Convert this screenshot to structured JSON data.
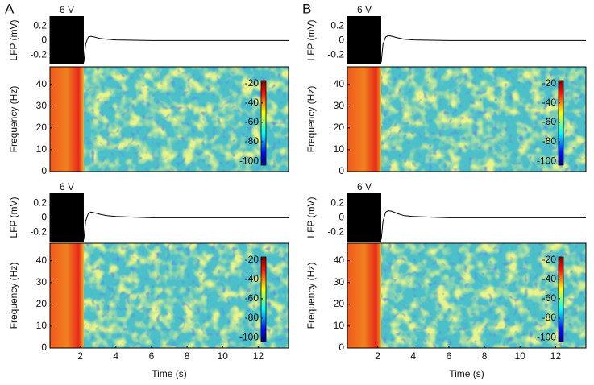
{
  "panel_labels": [
    "A",
    "B"
  ],
  "chart_data": [
    {
      "type": "line",
      "annotation": "6 V",
      "ylabel": "LFP (mV)",
      "xlim": [
        0.3,
        13.7
      ],
      "ylim": [
        -0.33,
        0.34
      ],
      "yticks": [
        0.2,
        0,
        -0.2
      ],
      "stimulus": [
        0.3,
        2.2
      ],
      "x": [
        2.2,
        2.3,
        2.45,
        2.6,
        2.8,
        3.1,
        3.5,
        4,
        5,
        6,
        8,
        10,
        12,
        13.7
      ],
      "y": [
        -0.3,
        -0.05,
        0.05,
        0.06,
        0.05,
        0.03,
        0.02,
        0.01,
        0.005,
        0,
        0,
        0,
        0,
        0
      ]
    },
    {
      "type": "heatmap",
      "ylabel": "Frequency (Hz)",
      "xlim": [
        0.3,
        13.7
      ],
      "ylim": [
        0,
        48
      ],
      "yticks": [
        0,
        10,
        20,
        30,
        40
      ],
      "stimulus": [
        0.3,
        2.2
      ],
      "colorbar": {
        "lim": [
          -104,
          -17
        ],
        "ticks": [
          -20,
          -40,
          -60,
          -80,
          -100
        ]
      }
    },
    {
      "type": "line",
      "annotation": "6 V",
      "ylabel": "LFP (mV)",
      "xlim": [
        0.3,
        13.7
      ],
      "ylim": [
        -0.33,
        0.34
      ],
      "yticks": [
        0.2,
        0,
        -0.2
      ],
      "stimulus": [
        0.3,
        2.2
      ],
      "x": [
        2.2,
        2.3,
        2.45,
        2.6,
        2.8,
        3.1,
        3.5,
        4,
        5,
        6,
        8,
        10,
        12,
        13.7
      ],
      "y": [
        -0.3,
        -0.05,
        0.06,
        0.08,
        0.07,
        0.05,
        0.03,
        0.02,
        0.01,
        0,
        0,
        0,
        0,
        0
      ]
    },
    {
      "type": "heatmap",
      "ylabel": "Frequency (Hz)",
      "xlabel": "Time (s)",
      "xlim": [
        0.3,
        13.7
      ],
      "ylim": [
        0,
        48
      ],
      "xticks": [
        2,
        4,
        6,
        8,
        10,
        12
      ],
      "yticks": [
        0,
        10,
        20,
        30,
        40
      ],
      "stimulus": [
        0.3,
        2.2
      ],
      "colorbar": {
        "lim": [
          -104,
          -17
        ],
        "ticks": [
          -20,
          -40,
          -60,
          -80,
          -100
        ]
      }
    },
    {
      "type": "line",
      "annotation": "6 V",
      "ylabel": "LFP (mV)",
      "xlim": [
        0.3,
        13.7
      ],
      "ylim": [
        -0.33,
        0.34
      ],
      "yticks": [
        0.2,
        0,
        -0.2
      ],
      "stimulus": [
        0.3,
        2.2
      ],
      "x": [
        2.2,
        2.3,
        2.45,
        2.6,
        2.8,
        3.1,
        3.5,
        4,
        5,
        6,
        8,
        10,
        12,
        13.7
      ],
      "y": [
        -0.3,
        -0.05,
        0.05,
        0.07,
        0.06,
        0.04,
        0.02,
        0.01,
        0.005,
        0,
        0,
        0,
        0,
        0
      ]
    },
    {
      "type": "heatmap",
      "ylabel": "Frequency (Hz)",
      "xlim": [
        0.3,
        13.7
      ],
      "ylim": [
        0,
        48
      ],
      "yticks": [
        0,
        10,
        20,
        30,
        40
      ],
      "stimulus": [
        0.3,
        2.2
      ],
      "colorbar": {
        "lim": [
          -104,
          -17
        ],
        "ticks": [
          -20,
          -40,
          -60,
          -80,
          -100
        ]
      }
    },
    {
      "type": "line",
      "annotation": "6 V",
      "ylabel": "LFP (mV)",
      "xlim": [
        0.3,
        13.7
      ],
      "ylim": [
        -0.33,
        0.34
      ],
      "yticks": [
        0.2,
        0,
        -0.2
      ],
      "stimulus": [
        0.3,
        2.2
      ],
      "x": [
        2.2,
        2.3,
        2.45,
        2.6,
        2.8,
        3.1,
        3.5,
        4,
        5,
        6,
        8,
        10,
        12,
        13.7
      ],
      "y": [
        -0.3,
        -0.05,
        0.08,
        0.1,
        0.09,
        0.06,
        0.03,
        0.02,
        0.01,
        0,
        0,
        0,
        0,
        0
      ]
    },
    {
      "type": "heatmap",
      "ylabel": "Frequency (Hz)",
      "xlabel": "Time (s)",
      "xlim": [
        0.3,
        13.7
      ],
      "ylim": [
        0,
        48
      ],
      "xticks": [
        2,
        4,
        6,
        8,
        10,
        12
      ],
      "yticks": [
        0,
        10,
        20,
        30,
        40
      ],
      "stimulus": [
        0.3,
        2.2
      ],
      "colorbar": {
        "lim": [
          -104,
          -17
        ],
        "ticks": [
          -20,
          -40,
          -60,
          -80,
          -100
        ]
      }
    }
  ]
}
